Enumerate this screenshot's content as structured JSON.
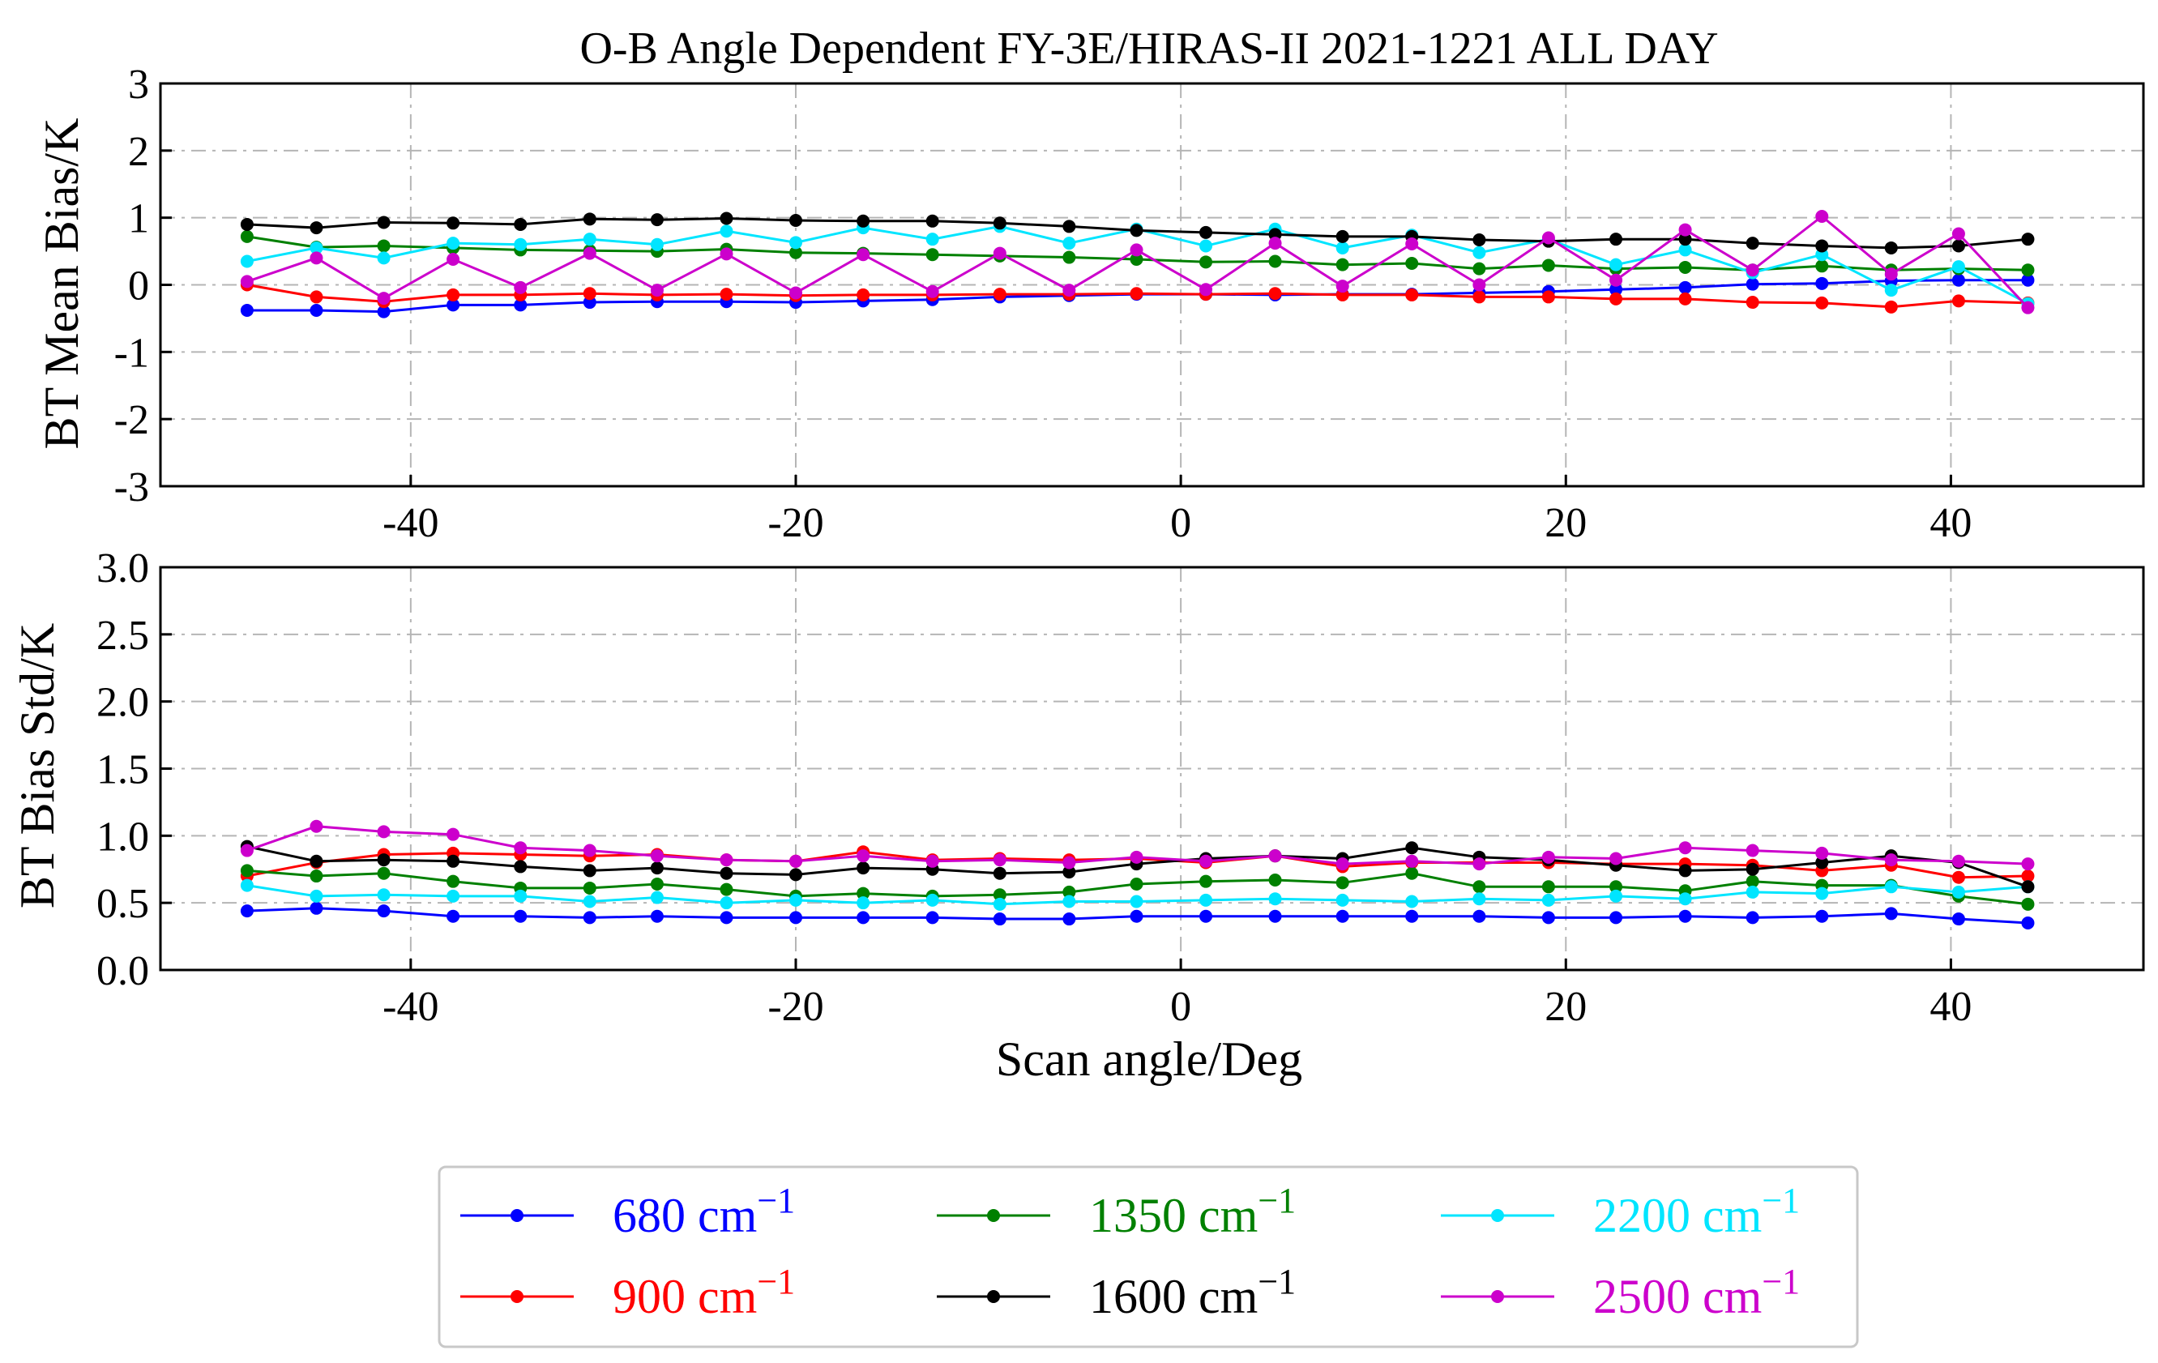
{
  "chart_data": [
    {
      "panel": "top",
      "type": "line",
      "title": "O-B Angle Dependent FY-3E/HIRAS-II 2021-1221 ALL DAY",
      "xlabel": "",
      "ylabel": "BT Mean Bias/K",
      "xlim": [
        -53,
        50
      ],
      "ylim": [
        -3,
        3
      ],
      "xticks": [
        -40,
        -20,
        0,
        20,
        40
      ],
      "xtick_labels": [
        "-40",
        "-20",
        "0",
        "20",
        "40"
      ],
      "yticks": [
        -3,
        -2,
        -1,
        0,
        1,
        2,
        3
      ],
      "ytick_labels": [
        "-3",
        "-2",
        "-1",
        "0",
        "1",
        "2",
        "3"
      ],
      "grid": true,
      "x": [
        -48.5,
        -44.9,
        -41.4,
        -37.8,
        -34.3,
        -30.7,
        -27.2,
        -23.6,
        -20.0,
        -16.5,
        -12.9,
        -9.4,
        -5.8,
        -2.3,
        1.3,
        4.9,
        8.4,
        12.0,
        15.5,
        19.1,
        22.6,
        26.2,
        29.7,
        33.3,
        36.9,
        40.4,
        44.0
      ],
      "series": [
        {
          "name": "680 cm",
          "color": "#0000ff",
          "values": [
            -0.38,
            -0.38,
            -0.4,
            -0.3,
            -0.3,
            -0.26,
            -0.25,
            -0.25,
            -0.26,
            -0.24,
            -0.22,
            -0.18,
            -0.16,
            -0.14,
            -0.14,
            -0.15,
            -0.14,
            -0.14,
            -0.12,
            -0.1,
            -0.07,
            -0.04,
            0.01,
            0.02,
            0.06,
            0.07,
            0.07
          ]
        },
        {
          "name": "900 cm",
          "color": "#ff0000",
          "values": [
            0.0,
            -0.18,
            -0.25,
            -0.15,
            -0.15,
            -0.13,
            -0.15,
            -0.14,
            -0.16,
            -0.15,
            -0.15,
            -0.14,
            -0.14,
            -0.13,
            -0.14,
            -0.13,
            -0.15,
            -0.15,
            -0.18,
            -0.18,
            -0.21,
            -0.21,
            -0.26,
            -0.27,
            -0.33,
            -0.24,
            -0.27
          ]
        },
        {
          "name": "1350 cm",
          "color": "#008000",
          "values": [
            0.72,
            0.56,
            0.58,
            0.55,
            0.52,
            0.51,
            0.5,
            0.53,
            0.48,
            0.47,
            0.45,
            0.43,
            0.41,
            0.38,
            0.34,
            0.35,
            0.3,
            0.32,
            0.24,
            0.29,
            0.24,
            0.26,
            0.22,
            0.28,
            0.22,
            0.24,
            0.22
          ]
        },
        {
          "name": "2200 cm",
          "color": "#00e5ff",
          "values": [
            0.35,
            0.55,
            0.4,
            0.62,
            0.6,
            0.68,
            0.6,
            0.8,
            0.63,
            0.85,
            0.68,
            0.87,
            0.62,
            0.83,
            0.58,
            0.83,
            0.55,
            0.74,
            0.48,
            0.68,
            0.3,
            0.52,
            0.18,
            0.45,
            -0.08,
            0.27,
            -0.28
          ]
        },
        {
          "name": "1600 cm",
          "color": "#000000",
          "values": [
            0.9,
            0.85,
            0.93,
            0.92,
            0.9,
            0.98,
            0.97,
            0.99,
            0.96,
            0.95,
            0.95,
            0.92,
            0.87,
            0.81,
            0.78,
            0.75,
            0.72,
            0.72,
            0.67,
            0.65,
            0.68,
            0.68,
            0.62,
            0.58,
            0.55,
            0.58,
            0.68
          ]
        },
        {
          "name": "2500 cm",
          "color": "#cc00cc",
          "values": [
            0.05,
            0.4,
            -0.2,
            0.38,
            -0.04,
            0.47,
            -0.08,
            0.46,
            -0.12,
            0.45,
            -0.1,
            0.47,
            -0.08,
            0.52,
            -0.07,
            0.62,
            -0.02,
            0.61,
            0.0,
            0.7,
            0.07,
            0.82,
            0.22,
            1.02,
            0.16,
            0.76,
            -0.34
          ]
        }
      ]
    },
    {
      "panel": "bottom",
      "type": "line",
      "title": "",
      "xlabel": "Scan angle/Deg",
      "ylabel": "BT Bias Std/K",
      "xlim": [
        -53,
        50
      ],
      "ylim": [
        0,
        3
      ],
      "xticks": [
        -40,
        -20,
        0,
        20,
        40
      ],
      "xtick_labels": [
        "-40",
        "-20",
        "0",
        "20",
        "40"
      ],
      "yticks": [
        0,
        0.5,
        1,
        1.5,
        2,
        2.5,
        3
      ],
      "ytick_labels": [
        "0.0",
        "0.5",
        "1.0",
        "1.5",
        "2.0",
        "2.5",
        "3.0"
      ],
      "grid": true,
      "x": [
        -48.5,
        -44.9,
        -41.4,
        -37.8,
        -34.3,
        -30.7,
        -27.2,
        -23.6,
        -20.0,
        -16.5,
        -12.9,
        -9.4,
        -5.8,
        -2.3,
        1.3,
        4.9,
        8.4,
        12.0,
        15.5,
        19.1,
        22.6,
        26.2,
        29.7,
        33.3,
        36.9,
        40.4,
        44.0
      ],
      "series": [
        {
          "name": "680 cm",
          "color": "#0000ff",
          "values": [
            0.44,
            0.46,
            0.44,
            0.4,
            0.4,
            0.39,
            0.4,
            0.39,
            0.39,
            0.39,
            0.39,
            0.38,
            0.38,
            0.4,
            0.4,
            0.4,
            0.4,
            0.4,
            0.4,
            0.39,
            0.39,
            0.4,
            0.39,
            0.4,
            0.42,
            0.38,
            0.35
          ]
        },
        {
          "name": "900 cm",
          "color": "#ff0000",
          "values": [
            0.7,
            0.8,
            0.86,
            0.87,
            0.86,
            0.85,
            0.86,
            0.82,
            0.81,
            0.88,
            0.82,
            0.83,
            0.82,
            0.83,
            0.8,
            0.85,
            0.77,
            0.8,
            0.8,
            0.8,
            0.79,
            0.79,
            0.78,
            0.74,
            0.78,
            0.69,
            0.7
          ]
        },
        {
          "name": "1350 cm",
          "color": "#008000",
          "values": [
            0.74,
            0.7,
            0.72,
            0.66,
            0.61,
            0.61,
            0.64,
            0.6,
            0.55,
            0.57,
            0.55,
            0.56,
            0.58,
            0.64,
            0.66,
            0.67,
            0.65,
            0.72,
            0.62,
            0.62,
            0.62,
            0.59,
            0.66,
            0.63,
            0.63,
            0.55,
            0.49
          ]
        },
        {
          "name": "2200 cm",
          "color": "#00e5ff",
          "values": [
            0.63,
            0.55,
            0.56,
            0.55,
            0.55,
            0.51,
            0.54,
            0.5,
            0.52,
            0.5,
            0.52,
            0.49,
            0.51,
            0.51,
            0.52,
            0.53,
            0.52,
            0.51,
            0.53,
            0.52,
            0.55,
            0.53,
            0.58,
            0.57,
            0.62,
            0.58,
            0.62
          ]
        },
        {
          "name": "1600 cm",
          "color": "#000000",
          "values": [
            0.92,
            0.81,
            0.82,
            0.81,
            0.77,
            0.74,
            0.76,
            0.72,
            0.71,
            0.76,
            0.75,
            0.72,
            0.73,
            0.79,
            0.83,
            0.85,
            0.83,
            0.91,
            0.84,
            0.82,
            0.78,
            0.74,
            0.75,
            0.8,
            0.85,
            0.8,
            0.62
          ]
        },
        {
          "name": "2500 cm",
          "color": "#cc00cc",
          "values": [
            0.89,
            1.07,
            1.03,
            1.01,
            0.91,
            0.89,
            0.85,
            0.82,
            0.81,
            0.85,
            0.81,
            0.82,
            0.8,
            0.84,
            0.81,
            0.85,
            0.79,
            0.81,
            0.79,
            0.84,
            0.83,
            0.91,
            0.89,
            0.87,
            0.82,
            0.81,
            0.79
          ]
        }
      ]
    }
  ],
  "legend": {
    "placement": "bottom-center",
    "exponent": "−1",
    "entries": [
      {
        "label": "680 cm",
        "color": "#0000ff",
        "text_color": "#0000ff"
      },
      {
        "label": "900 cm",
        "color": "#ff0000",
        "text_color": "#ff0000"
      },
      {
        "label": "1350 cm",
        "color": "#008000",
        "text_color": "#008000"
      },
      {
        "label": "1600 cm",
        "color": "#000000",
        "text_color": "#000000"
      },
      {
        "label": "2200 cm",
        "color": "#00e5ff",
        "text_color": "#00e5ff"
      },
      {
        "label": "2500 cm",
        "color": "#cc00cc",
        "text_color": "#cc00cc"
      }
    ]
  }
}
